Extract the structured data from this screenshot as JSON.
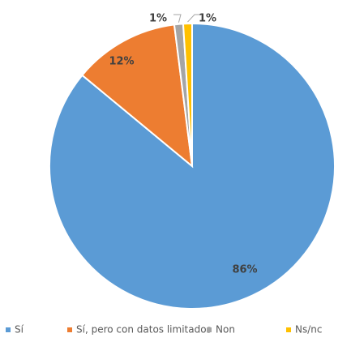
{
  "chart_data": {
    "type": "pie",
    "title": "",
    "slices": [
      {
        "label": "Sí",
        "value": 86,
        "display": "86%",
        "color": "#5B9BD5"
      },
      {
        "label": "Sí, pero con datos limitados",
        "value": 12,
        "display": "12%",
        "color": "#ED7D31"
      },
      {
        "label": "Non",
        "value": 1,
        "display": "1%",
        "color": "#A5A5A5"
      },
      {
        "label": "Ns/nc",
        "value": 1,
        "display": "1%",
        "color": "#FFC000"
      }
    ],
    "start": "12 o'clock",
    "direction": "clockwise",
    "legend_position": "bottom"
  }
}
